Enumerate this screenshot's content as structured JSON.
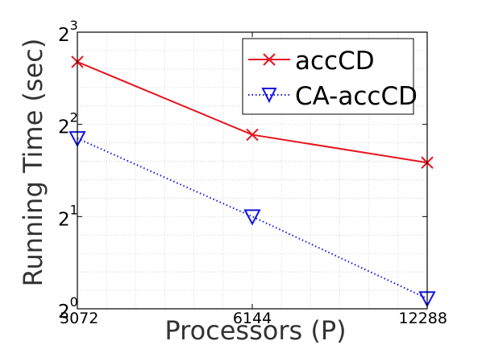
{
  "chart_data": {
    "type": "line",
    "xlabel": "Processors (P)",
    "ylabel": "Running Time (sec)",
    "x_scale": "log2",
    "y_scale": "log2",
    "x_ticks": [
      "3072",
      "6144",
      "12288"
    ],
    "y_ticks": [
      {
        "base": "2",
        "exp": "0"
      },
      {
        "base": "2",
        "exp": "1"
      },
      {
        "base": "2",
        "exp": "2"
      },
      {
        "base": "2",
        "exp": "3"
      }
    ],
    "xlim": [
      3072,
      12288
    ],
    "ylim": [
      1,
      8
    ],
    "grid": true,
    "legend_position": "top-right",
    "x": [
      3072,
      6144,
      12288
    ],
    "series": [
      {
        "name": "accCD",
        "values": [
          6.4,
          3.7,
          3.0
        ],
        "color": "#e8141c",
        "marker": "x",
        "line": "solid"
      },
      {
        "name": "CA-accCD",
        "values": [
          3.6,
          2.0,
          1.08
        ],
        "color": "#1414e0",
        "marker": "triangle-down",
        "line": "dotted"
      }
    ]
  }
}
